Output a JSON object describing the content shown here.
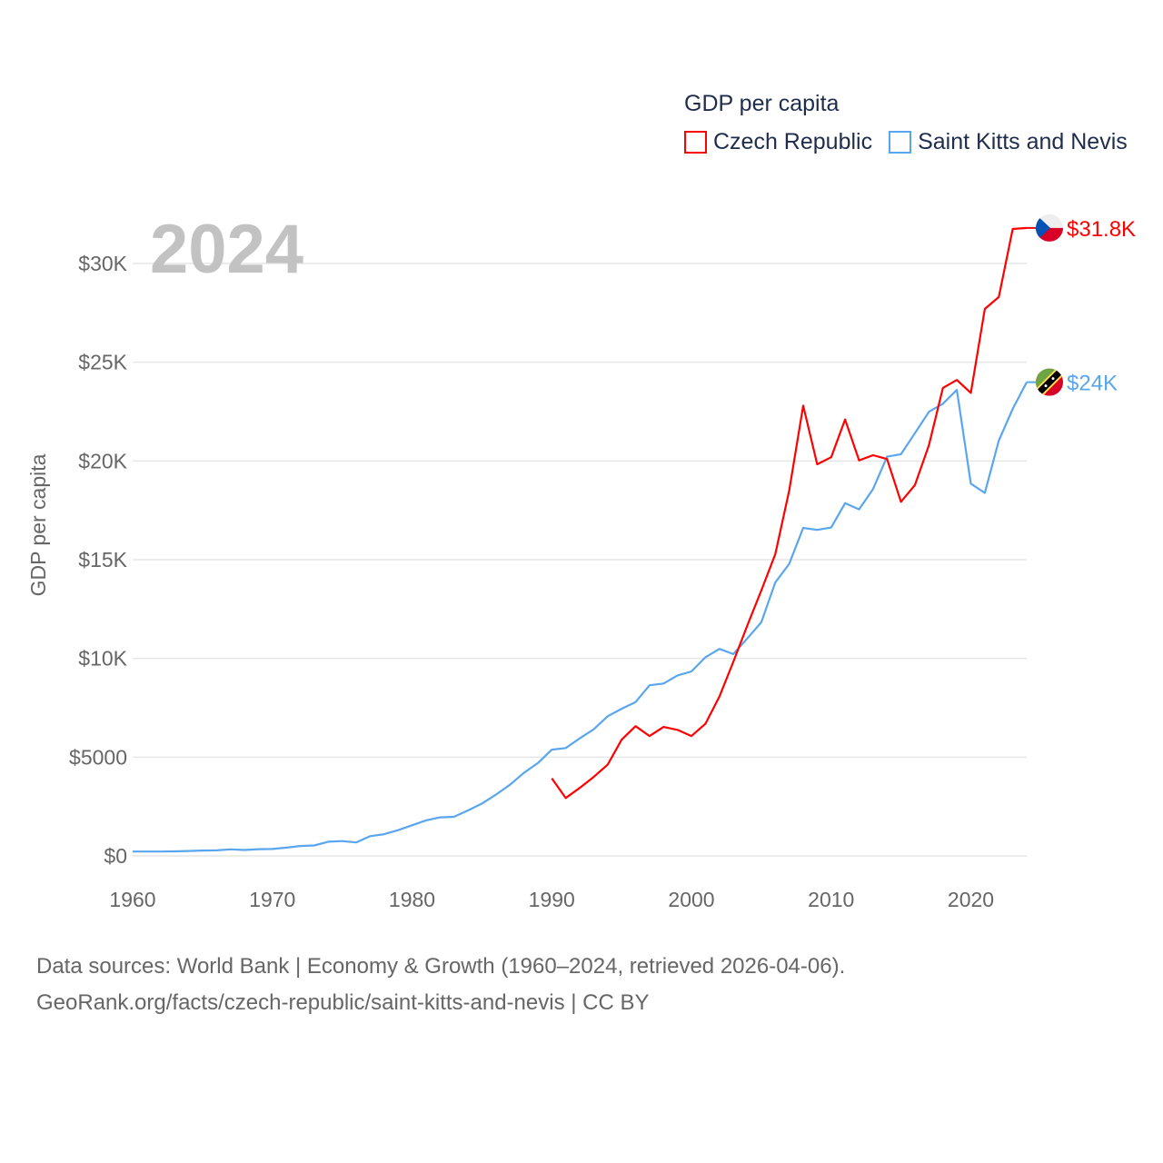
{
  "legend": {
    "title": "GDP per capita",
    "items": [
      {
        "label": "Czech Republic",
        "color": "#ff0000"
      },
      {
        "label": "Saint Kitts and Nevis",
        "color": "#5aa6ee"
      }
    ]
  },
  "year_watermark": "2024",
  "footer": {
    "line1": "Data sources: World Bank | Economy & Growth (1960–2024, retrieved 2026-04-06).",
    "line2": "GeoRank.org/facts/czech-republic/saint-kitts-and-nevis | CC BY"
  },
  "chart_data": {
    "type": "line",
    "title": "GDP per capita",
    "xlabel": "",
    "ylabel": "GDP per capita",
    "xlim": [
      1960,
      2024
    ],
    "ylim": [
      0,
      32000
    ],
    "grid": true,
    "legend_position": "top-right",
    "x_ticks": [
      1960,
      1970,
      1980,
      1990,
      2000,
      2010,
      2020
    ],
    "x_tick_labels": [
      "1960",
      "1970",
      "1980",
      "1990",
      "2000",
      "2010",
      "2020"
    ],
    "y_ticks": [
      0,
      5000,
      10000,
      15000,
      20000,
      25000,
      30000
    ],
    "y_tick_labels": [
      "$0",
      "$5000",
      "$10K",
      "$15K",
      "$20K",
      "$25K",
      "$30K"
    ],
    "series": [
      {
        "name": "Czech Republic",
        "color": "#ff0000",
        "flag": "czech-flag",
        "end_label": "$31.8K",
        "start_year": 1990,
        "values": [
          3930,
          2930,
          3440,
          4000,
          4620,
          5880,
          6570,
          6070,
          6530,
          6380,
          6070,
          6690,
          8070,
          9830,
          11670,
          13440,
          15280,
          18500,
          22800,
          19830,
          20190,
          22100,
          20030,
          20290,
          20100,
          17930,
          18780,
          20800,
          23700,
          24100,
          23450,
          27700,
          28300,
          31750,
          31800
        ]
      },
      {
        "name": "Saint Kitts and Nevis",
        "color": "#5aa6ee",
        "flag": "saint-kitts-flag",
        "end_label": "$24K",
        "start_year": 1960,
        "values": [
          220,
          220,
          220,
          230,
          250,
          270,
          280,
          330,
          300,
          340,
          350,
          420,
          500,
          530,
          720,
          750,
          680,
          1000,
          1100,
          1300,
          1550,
          1800,
          1950,
          1980,
          2300,
          2650,
          3100,
          3600,
          4200,
          4700,
          5380,
          5460,
          5950,
          6410,
          7070,
          7450,
          7790,
          8640,
          8730,
          9140,
          9340,
          10060,
          10480,
          10220,
          11010,
          11830,
          13850,
          14790,
          16610,
          16510,
          16630,
          17860,
          17550,
          18580,
          20220,
          20340,
          21410,
          22490,
          22900,
          23600,
          18850,
          18380,
          21030,
          22640,
          23990
        ]
      }
    ]
  }
}
